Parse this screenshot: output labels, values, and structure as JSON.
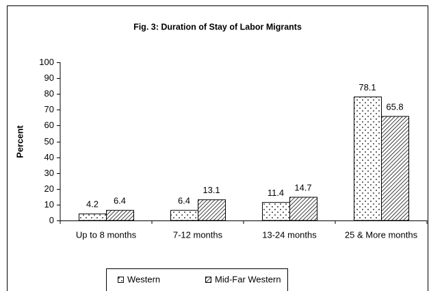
{
  "chart_data": {
    "type": "bar",
    "title": "Fig. 3: Duration of Stay of Labor Migrants",
    "y_label": "Percent",
    "categories": [
      "Up to 8 months",
      "7-12 months",
      "13-24 months",
      "25 & More months"
    ],
    "series": [
      {
        "name": "Western",
        "color": "dots",
        "values": [
          4.2,
          6.4,
          11.4,
          78.1
        ]
      },
      {
        "name": "Mid-Far Western",
        "color": "hatch",
        "values": [
          6.4,
          13.1,
          14.7,
          65.8
        ]
      }
    ],
    "ylim": [
      0,
      100
    ],
    "yticks": [
      0,
      10,
      20,
      30,
      40,
      50,
      60,
      70,
      80,
      90,
      100
    ],
    "legend": "bottom"
  }
}
